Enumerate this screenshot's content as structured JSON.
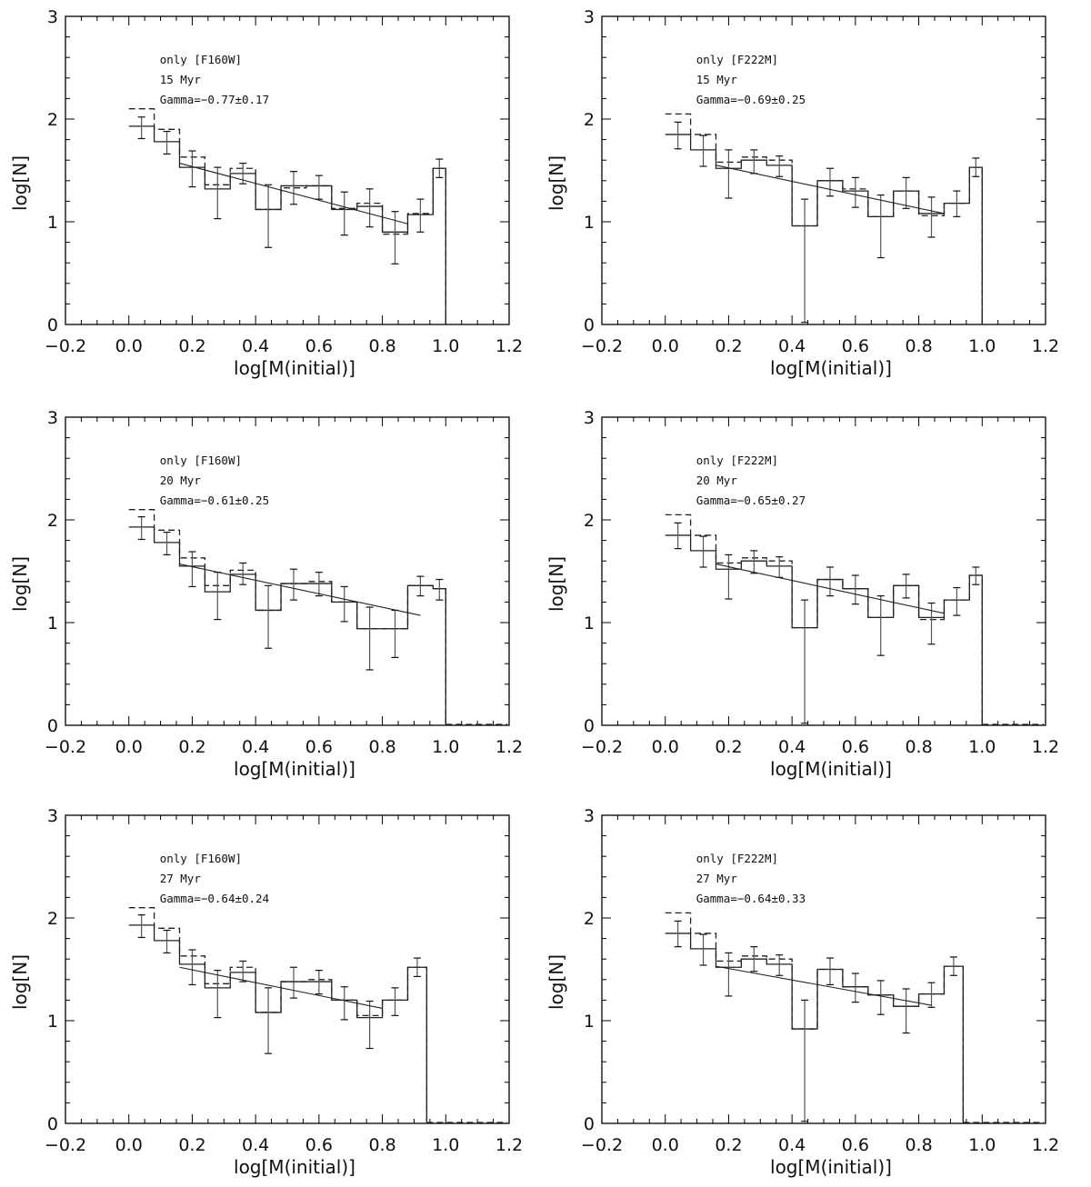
{
  "chart_data": [
    {
      "type": "histogram",
      "xlabel": "log[M(initial)]",
      "ylabel": "log[N]",
      "xlim": [
        -0.2,
        1.2
      ],
      "ylim": [
        0,
        3
      ],
      "xticks": [
        "−0.2",
        "0.0",
        "0.2",
        "0.4",
        "0.6",
        "0.8",
        "1.0",
        "1.2"
      ],
      "yticks": [
        "0",
        "1",
        "2",
        "3"
      ],
      "annotations": [
        "only [F160W]",
        "15 Myr",
        "Gamma=−0.77±0.17"
      ],
      "bin_edges": [
        0.0,
        0.08,
        0.16,
        0.24,
        0.32,
        0.4,
        0.48,
        0.56,
        0.64,
        0.72,
        0.8,
        0.88,
        0.96,
        1.0
      ],
      "series": [
        {
          "style": "solid",
          "values": [
            1.93,
            1.78,
            1.53,
            1.32,
            1.47,
            1.12,
            1.35,
            1.35,
            1.12,
            1.15,
            0.9,
            1.07,
            1.52
          ]
        },
        {
          "style": "dashed",
          "values": [
            2.1,
            1.9,
            1.63,
            1.36,
            1.52,
            1.12,
            1.33,
            1.35,
            1.13,
            1.18,
            0.88,
            1.08,
            1.52
          ]
        }
      ],
      "errorbars": [
        {
          "x": 0.04,
          "y": 1.93,
          "lo": 1.81,
          "hi": 2.02
        },
        {
          "x": 0.12,
          "y": 1.78,
          "lo": 1.66,
          "hi": 1.88
        },
        {
          "x": 0.2,
          "y": 1.53,
          "lo": 1.34,
          "hi": 1.69
        },
        {
          "x": 0.28,
          "y": 1.32,
          "lo": 1.03,
          "hi": 1.53
        },
        {
          "x": 0.36,
          "y": 1.47,
          "lo": 1.37,
          "hi": 1.57
        },
        {
          "x": 0.44,
          "y": 1.12,
          "lo": 0.75,
          "hi": 1.36
        },
        {
          "x": 0.52,
          "y": 1.35,
          "lo": 1.17,
          "hi": 1.49
        },
        {
          "x": 0.6,
          "y": 1.35,
          "lo": 1.22,
          "hi": 1.45
        },
        {
          "x": 0.68,
          "y": 1.12,
          "lo": 0.87,
          "hi": 1.29
        },
        {
          "x": 0.76,
          "y": 1.15,
          "lo": 0.95,
          "hi": 1.32
        },
        {
          "x": 0.84,
          "y": 0.9,
          "lo": 0.59,
          "hi": 1.1
        },
        {
          "x": 0.92,
          "y": 1.07,
          "lo": 0.9,
          "hi": 1.22
        },
        {
          "x": 0.98,
          "y": 1.52,
          "lo": 1.43,
          "hi": 1.61
        }
      ],
      "fit": {
        "x": [
          0.16,
          0.88
        ],
        "y": [
          1.57,
          0.98
        ]
      },
      "drop_to_zero_x": 1.0,
      "tail_end": null
    },
    {
      "type": "histogram",
      "xlabel": "log[M(initial)]",
      "ylabel": "log[N]",
      "xlim": [
        -0.2,
        1.2
      ],
      "ylim": [
        0,
        3
      ],
      "xticks": [
        "−0.2",
        "0.0",
        "0.2",
        "0.4",
        "0.6",
        "0.8",
        "1.0",
        "1.2"
      ],
      "yticks": [
        "0",
        "1",
        "2",
        "3"
      ],
      "annotations": [
        "only [F222M]",
        "15 Myr",
        "Gamma=−0.69±0.25"
      ],
      "bin_edges": [
        0.0,
        0.08,
        0.16,
        0.24,
        0.32,
        0.4,
        0.48,
        0.56,
        0.64,
        0.72,
        0.8,
        0.88,
        0.96,
        1.0
      ],
      "series": [
        {
          "style": "solid",
          "values": [
            1.85,
            1.7,
            1.52,
            1.6,
            1.55,
            0.96,
            1.4,
            1.3,
            1.05,
            1.3,
            1.08,
            1.18,
            1.53
          ]
        },
        {
          "style": "dashed",
          "values": [
            2.05,
            1.85,
            1.58,
            1.63,
            1.6,
            0.96,
            1.4,
            1.32,
            1.05,
            1.3,
            1.06,
            1.18,
            1.53
          ]
        }
      ],
      "errorbars": [
        {
          "x": 0.04,
          "y": 1.85,
          "lo": 1.71,
          "hi": 1.97
        },
        {
          "x": 0.12,
          "y": 1.7,
          "lo": 1.54,
          "hi": 1.84
        },
        {
          "x": 0.2,
          "y": 1.52,
          "lo": 1.23,
          "hi": 1.7
        },
        {
          "x": 0.28,
          "y": 1.6,
          "lo": 1.47,
          "hi": 1.7
        },
        {
          "x": 0.36,
          "y": 1.55,
          "lo": 1.44,
          "hi": 1.64
        },
        {
          "x": 0.44,
          "y": 0.96,
          "lo": 0.02,
          "hi": 1.22
        },
        {
          "x": 0.52,
          "y": 1.4,
          "lo": 1.25,
          "hi": 1.52
        },
        {
          "x": 0.6,
          "y": 1.3,
          "lo": 1.14,
          "hi": 1.43
        },
        {
          "x": 0.68,
          "y": 1.05,
          "lo": 0.65,
          "hi": 1.26
        },
        {
          "x": 0.76,
          "y": 1.3,
          "lo": 1.13,
          "hi": 1.43
        },
        {
          "x": 0.84,
          "y": 1.08,
          "lo": 0.85,
          "hi": 1.24
        },
        {
          "x": 0.92,
          "y": 1.18,
          "lo": 1.05,
          "hi": 1.3
        },
        {
          "x": 0.98,
          "y": 1.53,
          "lo": 1.44,
          "hi": 1.62
        }
      ],
      "fit": {
        "x": [
          0.16,
          0.88
        ],
        "y": [
          1.55,
          1.08
        ]
      },
      "drop_to_zero_x": 1.0,
      "tail_end": null
    },
    {
      "type": "histogram",
      "xlabel": "log[M(initial)]",
      "ylabel": "log[N]",
      "xlim": [
        -0.2,
        1.2
      ],
      "ylim": [
        0,
        3
      ],
      "xticks": [
        "−0.2",
        "0.0",
        "0.2",
        "0.4",
        "0.6",
        "0.8",
        "1.0",
        "1.2"
      ],
      "yticks": [
        "0",
        "1",
        "2",
        "3"
      ],
      "annotations": [
        "only [F160W]",
        "20 Myr",
        "Gamma=−0.61±0.25"
      ],
      "bin_edges": [
        0.0,
        0.08,
        0.16,
        0.24,
        0.32,
        0.4,
        0.48,
        0.56,
        0.64,
        0.72,
        0.8,
        0.88,
        0.96,
        1.0
      ],
      "series": [
        {
          "style": "solid",
          "values": [
            1.93,
            1.78,
            1.55,
            1.3,
            1.47,
            1.12,
            1.38,
            1.38,
            1.2,
            0.94,
            0.94,
            1.36,
            1.33
          ]
        },
        {
          "style": "dashed",
          "values": [
            2.1,
            1.9,
            1.63,
            1.36,
            1.51,
            1.12,
            1.38,
            1.4,
            1.2,
            0.94,
            0.94,
            1.36,
            1.33
          ]
        }
      ],
      "errorbars": [
        {
          "x": 0.04,
          "y": 1.93,
          "lo": 1.81,
          "hi": 2.03
        },
        {
          "x": 0.12,
          "y": 1.78,
          "lo": 1.66,
          "hi": 1.88
        },
        {
          "x": 0.2,
          "y": 1.55,
          "lo": 1.35,
          "hi": 1.69
        },
        {
          "x": 0.28,
          "y": 1.3,
          "lo": 1.03,
          "hi": 1.49
        },
        {
          "x": 0.36,
          "y": 1.47,
          "lo": 1.37,
          "hi": 1.58
        },
        {
          "x": 0.44,
          "y": 1.12,
          "lo": 0.75,
          "hi": 1.36
        },
        {
          "x": 0.52,
          "y": 1.38,
          "lo": 1.22,
          "hi": 1.52
        },
        {
          "x": 0.6,
          "y": 1.38,
          "lo": 1.26,
          "hi": 1.49
        },
        {
          "x": 0.68,
          "y": 1.2,
          "lo": 1.01,
          "hi": 1.35
        },
        {
          "x": 0.76,
          "y": 0.94,
          "lo": 0.54,
          "hi": 1.15
        },
        {
          "x": 0.84,
          "y": 0.94,
          "lo": 0.66,
          "hi": 1.12
        },
        {
          "x": 0.92,
          "y": 1.36,
          "lo": 1.26,
          "hi": 1.45
        },
        {
          "x": 0.98,
          "y": 1.33,
          "lo": 1.22,
          "hi": 1.42
        }
      ],
      "fit": {
        "x": [
          0.16,
          0.92
        ],
        "y": [
          1.57,
          1.07
        ]
      },
      "drop_to_zero_x": 1.0,
      "tail_end": 1.2
    },
    {
      "type": "histogram",
      "xlabel": "log[M(initial)]",
      "ylabel": "log[N]",
      "xlim": [
        -0.2,
        1.2
      ],
      "ylim": [
        0,
        3
      ],
      "xticks": [
        "−0.2",
        "0.0",
        "0.2",
        "0.4",
        "0.6",
        "0.8",
        "1.0",
        "1.2"
      ],
      "yticks": [
        "0",
        "1",
        "2",
        "3"
      ],
      "annotations": [
        "only [F222M]",
        "20 Myr",
        "Gamma=−0.65±0.27"
      ],
      "bin_edges": [
        0.0,
        0.08,
        0.16,
        0.24,
        0.32,
        0.4,
        0.48,
        0.56,
        0.64,
        0.72,
        0.8,
        0.88,
        0.96,
        1.0
      ],
      "series": [
        {
          "style": "solid",
          "values": [
            1.85,
            1.7,
            1.52,
            1.6,
            1.55,
            0.95,
            1.42,
            1.33,
            1.05,
            1.36,
            1.05,
            1.22,
            1.46
          ]
        },
        {
          "style": "dashed",
          "values": [
            2.05,
            1.85,
            1.58,
            1.63,
            1.6,
            0.95,
            1.42,
            1.33,
            1.05,
            1.36,
            1.03,
            1.22,
            1.46
          ]
        }
      ],
      "errorbars": [
        {
          "x": 0.04,
          "y": 1.85,
          "lo": 1.72,
          "hi": 1.97
        },
        {
          "x": 0.12,
          "y": 1.7,
          "lo": 1.54,
          "hi": 1.84
        },
        {
          "x": 0.2,
          "y": 1.52,
          "lo": 1.23,
          "hi": 1.66
        },
        {
          "x": 0.28,
          "y": 1.6,
          "lo": 1.48,
          "hi": 1.7
        },
        {
          "x": 0.36,
          "y": 1.55,
          "lo": 1.44,
          "hi": 1.64
        },
        {
          "x": 0.44,
          "y": 0.95,
          "lo": 0.02,
          "hi": 1.22
        },
        {
          "x": 0.52,
          "y": 1.42,
          "lo": 1.26,
          "hi": 1.54
        },
        {
          "x": 0.6,
          "y": 1.33,
          "lo": 1.18,
          "hi": 1.46
        },
        {
          "x": 0.68,
          "y": 1.05,
          "lo": 0.68,
          "hi": 1.26
        },
        {
          "x": 0.76,
          "y": 1.36,
          "lo": 1.24,
          "hi": 1.47
        },
        {
          "x": 0.84,
          "y": 1.05,
          "lo": 0.79,
          "hi": 1.19
        },
        {
          "x": 0.92,
          "y": 1.22,
          "lo": 1.07,
          "hi": 1.34
        },
        {
          "x": 0.98,
          "y": 1.46,
          "lo": 1.37,
          "hi": 1.54
        }
      ],
      "fit": {
        "x": [
          0.16,
          0.88
        ],
        "y": [
          1.57,
          1.09
        ]
      },
      "drop_to_zero_x": 1.0,
      "tail_end": 1.2
    },
    {
      "type": "histogram",
      "xlabel": "log[M(initial)]",
      "ylabel": "log[N]",
      "xlim": [
        -0.2,
        1.2
      ],
      "ylim": [
        0,
        3
      ],
      "xticks": [
        "−0.2",
        "0.0",
        "0.2",
        "0.4",
        "0.6",
        "0.8",
        "1.0",
        "1.2"
      ],
      "yticks": [
        "0",
        "1",
        "2",
        "3"
      ],
      "annotations": [
        "only [F160W]",
        "27 Myr",
        "Gamma=−0.64±0.24"
      ],
      "bin_edges": [
        0.0,
        0.08,
        0.16,
        0.24,
        0.32,
        0.4,
        0.48,
        0.56,
        0.64,
        0.72,
        0.8,
        0.88,
        0.94
      ],
      "series": [
        {
          "style": "solid",
          "values": [
            1.93,
            1.78,
            1.55,
            1.32,
            1.47,
            1.08,
            1.38,
            1.38,
            1.2,
            1.03,
            1.2,
            1.52
          ]
        },
        {
          "style": "dashed",
          "values": [
            2.1,
            1.9,
            1.63,
            1.36,
            1.52,
            1.08,
            1.38,
            1.4,
            1.2,
            1.05,
            1.2,
            1.52
          ]
        }
      ],
      "errorbars": [
        {
          "x": 0.04,
          "y": 1.93,
          "lo": 1.81,
          "hi": 2.03
        },
        {
          "x": 0.12,
          "y": 1.78,
          "lo": 1.66,
          "hi": 1.88
        },
        {
          "x": 0.2,
          "y": 1.55,
          "lo": 1.35,
          "hi": 1.69
        },
        {
          "x": 0.28,
          "y": 1.32,
          "lo": 1.03,
          "hi": 1.49
        },
        {
          "x": 0.36,
          "y": 1.47,
          "lo": 1.38,
          "hi": 1.58
        },
        {
          "x": 0.44,
          "y": 1.08,
          "lo": 0.68,
          "hi": 1.32
        },
        {
          "x": 0.52,
          "y": 1.38,
          "lo": 1.22,
          "hi": 1.52
        },
        {
          "x": 0.6,
          "y": 1.38,
          "lo": 1.26,
          "hi": 1.49
        },
        {
          "x": 0.68,
          "y": 1.2,
          "lo": 1.01,
          "hi": 1.33
        },
        {
          "x": 0.76,
          "y": 1.03,
          "lo": 0.73,
          "hi": 1.19
        },
        {
          "x": 0.84,
          "y": 1.2,
          "lo": 1.05,
          "hi": 1.32
        },
        {
          "x": 0.91,
          "y": 1.52,
          "lo": 1.43,
          "hi": 1.61
        }
      ],
      "fit": {
        "x": [
          0.16,
          0.8
        ],
        "y": [
          1.52,
          1.12
        ]
      },
      "drop_to_zero_x": 0.94,
      "tail_end": 1.2
    },
    {
      "type": "histogram",
      "xlabel": "log[M(initial)]",
      "ylabel": "log[N]",
      "xlim": [
        -0.2,
        1.2
      ],
      "ylim": [
        0,
        3
      ],
      "xticks": [
        "−0.2",
        "0.0",
        "0.2",
        "0.4",
        "0.6",
        "0.8",
        "1.0",
        "1.2"
      ],
      "yticks": [
        "0",
        "1",
        "2",
        "3"
      ],
      "annotations": [
        "only [F222M]",
        "27 Myr",
        "Gamma=−0.64±0.33"
      ],
      "bin_edges": [
        0.0,
        0.08,
        0.16,
        0.24,
        0.32,
        0.4,
        0.48,
        0.56,
        0.64,
        0.72,
        0.8,
        0.88,
        0.94
      ],
      "series": [
        {
          "style": "solid",
          "values": [
            1.85,
            1.7,
            1.52,
            1.6,
            1.55,
            0.92,
            1.5,
            1.33,
            1.25,
            1.14,
            1.26,
            1.53
          ]
        },
        {
          "style": "dashed",
          "values": [
            2.05,
            1.85,
            1.58,
            1.63,
            1.6,
            0.92,
            1.5,
            1.33,
            1.25,
            1.14,
            1.26,
            1.53
          ]
        }
      ],
      "errorbars": [
        {
          "x": 0.04,
          "y": 1.85,
          "lo": 1.72,
          "hi": 1.97
        },
        {
          "x": 0.12,
          "y": 1.7,
          "lo": 1.54,
          "hi": 1.84
        },
        {
          "x": 0.2,
          "y": 1.52,
          "lo": 1.24,
          "hi": 1.66
        },
        {
          "x": 0.28,
          "y": 1.6,
          "lo": 1.48,
          "hi": 1.72
        },
        {
          "x": 0.36,
          "y": 1.55,
          "lo": 1.44,
          "hi": 1.64
        },
        {
          "x": 0.44,
          "y": 0.92,
          "lo": 0.02,
          "hi": 1.2
        },
        {
          "x": 0.52,
          "y": 1.5,
          "lo": 1.35,
          "hi": 1.61
        },
        {
          "x": 0.6,
          "y": 1.33,
          "lo": 1.18,
          "hi": 1.46
        },
        {
          "x": 0.68,
          "y": 1.25,
          "lo": 1.06,
          "hi": 1.39
        },
        {
          "x": 0.76,
          "y": 1.14,
          "lo": 0.88,
          "hi": 1.31
        },
        {
          "x": 0.84,
          "y": 1.26,
          "lo": 1.13,
          "hi": 1.37
        },
        {
          "x": 0.91,
          "y": 1.53,
          "lo": 1.44,
          "hi": 1.62
        }
      ],
      "fit": {
        "x": [
          0.16,
          0.84
        ],
        "y": [
          1.53,
          1.15
        ]
      },
      "drop_to_zero_x": 0.94,
      "tail_end": 1.2
    }
  ]
}
